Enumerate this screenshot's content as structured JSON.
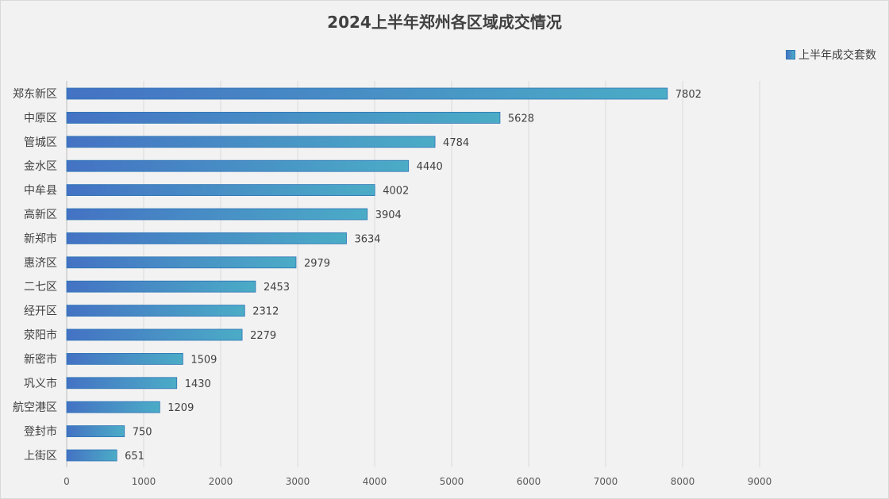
{
  "chart_data": {
    "type": "bar",
    "orientation": "horizontal",
    "title": "2024上半年郑州各区域成交情况",
    "categories": [
      "郑东新区",
      "中原区",
      "管城区",
      "金水区",
      "中牟县",
      "高新区",
      "新郑市",
      "惠济区",
      "二七区",
      "经开区",
      "荥阳市",
      "新密市",
      "巩义市",
      "航空港区",
      "登封市",
      "上街区"
    ],
    "series": [
      {
        "name": "上半年成交套数",
        "values": [
          7802,
          5628,
          4784,
          4440,
          4002,
          3904,
          3634,
          2979,
          2453,
          2312,
          2279,
          1509,
          1430,
          1209,
          750,
          651
        ]
      }
    ],
    "xlim": [
      0,
      9000
    ],
    "xticks": [
      "0",
      "1000",
      "2000",
      "3000",
      "4000",
      "5000",
      "6000",
      "7000",
      "8000",
      "9000"
    ],
    "grid": true,
    "legend": "top-right",
    "bar_gradient": [
      "#4472c4",
      "#4bacc6"
    ],
    "bar_border": "#2e75b6"
  }
}
